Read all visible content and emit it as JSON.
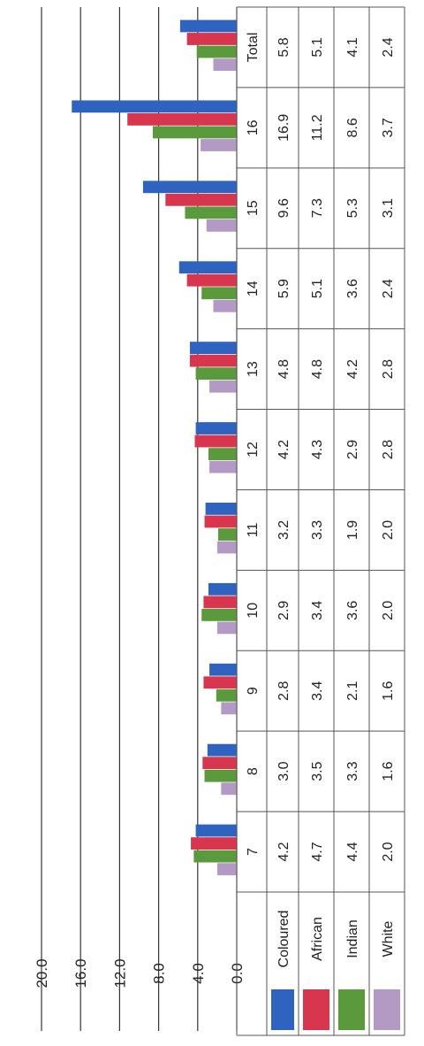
{
  "chart_data": {
    "type": "bar",
    "orientation": "rotated-90",
    "categories": [
      "7",
      "8",
      "9",
      "10",
      "11",
      "12",
      "13",
      "14",
      "15",
      "16",
      "Total"
    ],
    "series": [
      {
        "name": "Coloured",
        "color": "#2f63c0",
        "values": [
          4.2,
          3.0,
          2.8,
          2.9,
          3.2,
          4.2,
          4.8,
          5.9,
          9.6,
          16.9,
          5.8
        ]
      },
      {
        "name": "African",
        "color": "#d8364f",
        "values": [
          4.7,
          3.5,
          3.4,
          3.4,
          3.3,
          4.3,
          4.8,
          5.1,
          7.3,
          11.2,
          5.1
        ]
      },
      {
        "name": "Indian",
        "color": "#5a9a3c",
        "values": [
          4.4,
          3.3,
          2.1,
          3.6,
          1.9,
          2.9,
          4.2,
          3.6,
          5.3,
          8.6,
          4.1
        ]
      },
      {
        "name": "White",
        "color": "#b39ac4",
        "values": [
          2.0,
          1.6,
          1.6,
          2.0,
          2.0,
          2.8,
          2.8,
          2.4,
          3.1,
          3.7,
          2.4
        ]
      }
    ],
    "display": {
      "Coloured": [
        "4.2",
        "3.0",
        "2.8",
        "2.9",
        "3.2",
        "4.2",
        "4.8",
        "5.9",
        "9.6",
        "16.9",
        "5.8"
      ],
      "African": [
        "4.7",
        "3.5",
        "3.4",
        "3.4",
        "3.3",
        "4.3",
        "4.8",
        "5.1",
        "7.3",
        "11.2",
        "5.1"
      ],
      "Indian": [
        "4.4",
        "3.3",
        "2.1",
        "3.6",
        "1.9",
        "2.9",
        "4.2",
        "3.6",
        "5.3",
        "8.6",
        "4.1"
      ],
      "White": [
        "2.0",
        "1.6",
        "1.6",
        "2.0",
        "2.0",
        "2.8",
        "2.8",
        "2.4",
        "3.1",
        "3.7",
        "2.4"
      ]
    },
    "yticks": [
      "0.0",
      "4.0",
      "8.0",
      "12.0",
      "16.0",
      "20.0"
    ],
    "ylim": [
      0,
      20
    ],
    "grid": true,
    "legend": "data-table"
  }
}
